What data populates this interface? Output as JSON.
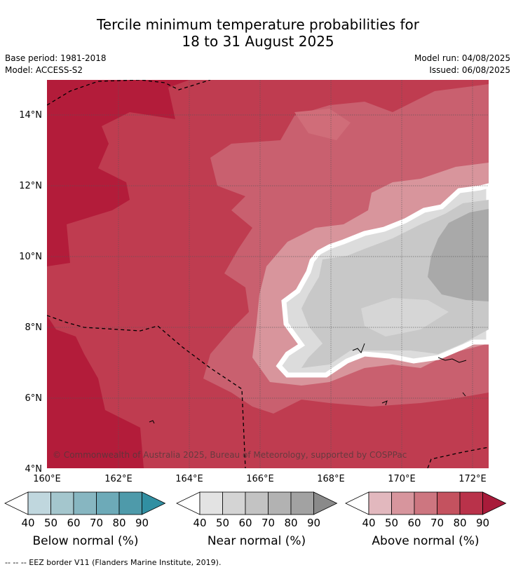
{
  "title": {
    "line1": "Tercile minimum temperature probabilities for",
    "line2": "18 to 31 August 2025"
  },
  "meta": {
    "base_period": "Base period: 1981-2018",
    "model": "Model: ACCESS-S2",
    "model_run": "Model run: 04/08/2025",
    "issued": "Issued: 06/08/2025"
  },
  "map": {
    "lat_labels": [
      "14°N",
      "12°N",
      "10°N",
      "8°N",
      "6°N",
      "4°N"
    ],
    "lon_labels": [
      "160°E",
      "162°E",
      "164°E",
      "166°E",
      "168°E",
      "170°E",
      "172°E"
    ],
    "copyright": "© Commonwealth of Australia 2025, Bureau of Meteorology, supported by COSPPac",
    "colors": {
      "above_90": "#b31c3a",
      "above_80": "#bf3c50",
      "above_70": "#c9606f",
      "above_60": "#d8959c",
      "near_50": "#dcdcdc",
      "near_60": "#c8c8c8",
      "near_70": "#a9a9a9",
      "eez_border": "#000000"
    }
  },
  "colorbars": [
    {
      "label": "Below normal (%)",
      "ticks": [
        "40",
        "50",
        "60",
        "70",
        "80",
        "90"
      ],
      "colors": [
        "#ffffff",
        "#c0d7de",
        "#a4c6cd",
        "#87b6c1",
        "#6daab8",
        "#4e9aaa",
        "#318fa2"
      ]
    },
    {
      "label": "Near normal (%)",
      "ticks": [
        "40",
        "50",
        "60",
        "70",
        "80",
        "90"
      ],
      "colors": [
        "#ffffff",
        "#e3e3e3",
        "#d4d4d4",
        "#c3c3c3",
        "#b2b2b2",
        "#a2a2a2",
        "#8a8a8a"
      ]
    },
    {
      "label": "Above normal (%)",
      "ticks": [
        "40",
        "50",
        "60",
        "70",
        "80",
        "90"
      ],
      "colors": [
        "#ffffff",
        "#e2b8be",
        "#d7959d",
        "#cd7680",
        "#c4525f",
        "#b9324a",
        "#a81b3a"
      ]
    }
  ],
  "footer": "-- -- -- EEZ border V11 (Flanders Marine Institute, 2019)."
}
